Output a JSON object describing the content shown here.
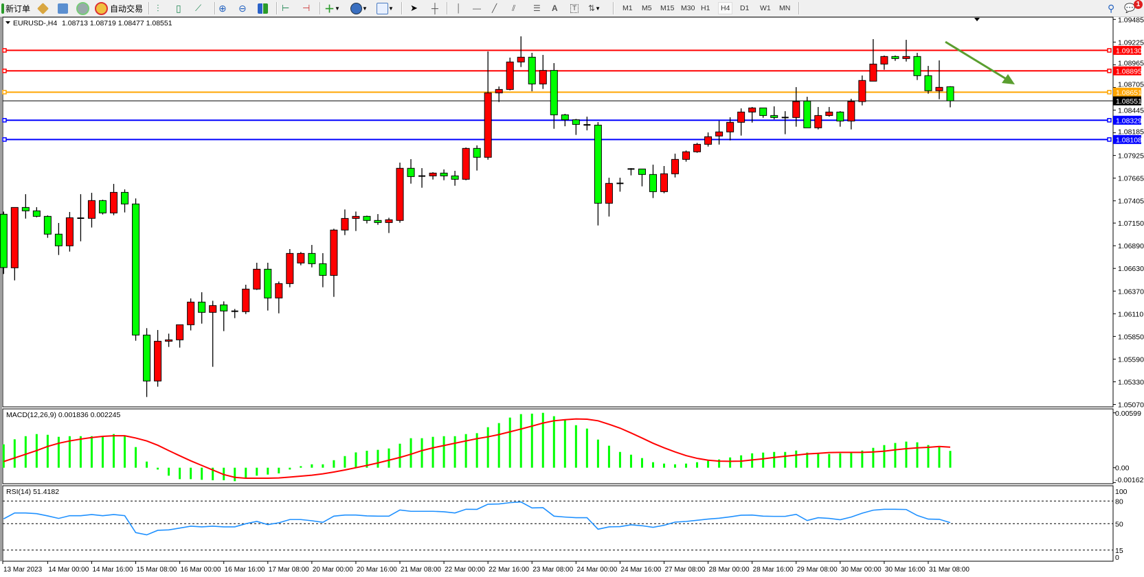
{
  "toolbar": {
    "new_order": "新订单",
    "auto_trade": "自动交易",
    "timeframes": [
      "M1",
      "M5",
      "M15",
      "M30",
      "H1",
      "H4",
      "D1",
      "W1",
      "MN"
    ],
    "active_timeframe": "H4",
    "notification_count": "1",
    "icons": [
      "new-order-icon",
      "market-watch-icon",
      "navigator-icon",
      "signals-icon",
      "auto-trade-icon",
      "bar-chart-icon",
      "candlestick-icon",
      "line-chart-icon",
      "zoom-in-icon",
      "zoom-out-icon",
      "tile-windows-icon",
      "auto-scroll-icon",
      "chart-shift-icon",
      "new-chart-icon",
      "periods-icon",
      "templates-icon",
      "cursor-icon",
      "crosshair-icon",
      "vertical-line-icon",
      "horizontal-line-icon",
      "trendline-icon",
      "equidistant-channel-icon",
      "fibonacci-icon",
      "text-icon",
      "text-label-icon",
      "arrows-icon",
      "search-icon",
      "notification-icon"
    ]
  },
  "chart": {
    "symbol": "EURUSD-,H4",
    "ohlc_text": "1.08713 1.08719 1.08477 1.08551",
    "macd_label": "MACD(12,26,9) 0.001836 0.002245",
    "rsi_label": "RSI(14) 51.4182",
    "up_color": "#ff0000",
    "down_color": "#00ff00",
    "rsi_color": "#1e90ff",
    "signal_color": "#ff0000",
    "arrow_color": "#5a9e2f"
  },
  "chart_data": {
    "type": "candlestick",
    "symbol": "EURUSD-",
    "timeframe": "H4",
    "price_range": [
      1.0507,
      1.09485
    ],
    "price_ticks": [
      "1.09485",
      "1.09225",
      "1.08965",
      "1.08705",
      "1.08445",
      "1.08185",
      "1.07925",
      "1.07665",
      "1.07405",
      "1.07150",
      "1.06890",
      "1.06630",
      "1.06370",
      "1.06110",
      "1.05850",
      "1.05590",
      "1.05330",
      "1.05070"
    ],
    "current_price": {
      "value": 1.08551,
      "label": "1.08551",
      "color": "#000000"
    },
    "levels": [
      {
        "value": 1.0913,
        "label": "1.09130",
        "color": "#ff0000"
      },
      {
        "value": 1.08895,
        "label": "1.08895",
        "color": "#ff0000"
      },
      {
        "value": 1.08651,
        "label": "1.08651",
        "color": "#ffa500"
      },
      {
        "value": 1.08329,
        "label": "1.08329",
        "color": "#0000ff"
      },
      {
        "value": 1.08108,
        "label": "1.08108",
        "color": "#0000ff"
      }
    ],
    "annotation_arrow": {
      "from": [
        "2023-03-31 16:00",
        1.0926
      ],
      "to": [
        "after last bar",
        1.088
      ],
      "direction": "down"
    },
    "time_labels": [
      "13 Mar 2023",
      "14 Mar 00:00",
      "14 Mar 16:00",
      "15 Mar 08:00",
      "16 Mar 00:00",
      "16 Mar 16:00",
      "17 Mar 08:00",
      "20 Mar 00:00",
      "20 Mar 16:00",
      "21 Mar 08:00",
      "22 Mar 00:00",
      "22 Mar 16:00",
      "23 Mar 08:00",
      "24 Mar 00:00",
      "24 Mar 16:00",
      "27 Mar 08:00",
      "28 Mar 00:00",
      "28 Mar 16:00",
      "29 Mar 08:00",
      "30 Mar 00:00",
      "30 Mar 16:00",
      "31 Mar 08:00"
    ],
    "candle_fields": [
      "time",
      "open",
      "high",
      "low",
      "close"
    ],
    "candles": [
      [
        "2023-03-13 08:00",
        1.07251,
        1.07282,
        1.06566,
        1.0664
      ],
      [
        "2023-03-13 12:00",
        1.06637,
        1.07329,
        1.06493,
        1.07329
      ],
      [
        "2023-03-13 16:00",
        1.07329,
        1.07481,
        1.07201,
        1.0729
      ],
      [
        "2023-03-13 20:00",
        1.0729,
        1.07332,
        1.07216,
        1.07227
      ],
      [
        "2023-03-14 00:00",
        1.07227,
        1.07238,
        1.06981,
        1.07023
      ],
      [
        "2023-03-14 04:00",
        1.07023,
        1.07151,
        1.06784,
        1.06889
      ],
      [
        "2023-03-14 08:00",
        1.06889,
        1.07277,
        1.06823,
        1.07211
      ],
      [
        "2023-03-14 12:00",
        1.07206,
        1.07481,
        1.06941,
        1.07206
      ],
      [
        "2023-03-14 16:00",
        1.07204,
        1.07497,
        1.07099,
        1.07408
      ],
      [
        "2023-03-14 20:00",
        1.07408,
        1.07418,
        1.07248,
        1.07266
      ],
      [
        "2023-03-15 00:00",
        1.07266,
        1.07599,
        1.0724,
        1.07502
      ],
      [
        "2023-03-15 04:00",
        1.07502,
        1.07536,
        1.07272,
        1.07369
      ],
      [
        "2023-03-15 08:00",
        1.07369,
        1.07432,
        1.05801,
        1.05866
      ],
      [
        "2023-03-15 12:00",
        1.05866,
        1.05945,
        1.05156,
        1.05339
      ],
      [
        "2023-03-15 16:00",
        1.05339,
        1.05924,
        1.05274,
        1.05795
      ],
      [
        "2023-03-15 20:00",
        1.05795,
        1.05882,
        1.0573,
        1.05811
      ],
      [
        "2023-03-16 00:00",
        1.05811,
        1.05984,
        1.05722,
        1.05984
      ],
      [
        "2023-03-16 04:00",
        1.05984,
        1.06286,
        1.05919,
        1.06244
      ],
      [
        "2023-03-16 08:00",
        1.06244,
        1.06357,
        1.05997,
        1.06126
      ],
      [
        "2023-03-16 12:00",
        1.06126,
        1.06259,
        1.05502,
        1.06204
      ],
      [
        "2023-03-16 16:00",
        1.06212,
        1.06252,
        1.05911,
        1.06142
      ],
      [
        "2023-03-16 20:00",
        1.06139,
        1.06165,
        1.0606,
        1.06139
      ],
      [
        "2023-03-17 00:00",
        1.06134,
        1.06443,
        1.06107,
        1.06393
      ],
      [
        "2023-03-17 04:00",
        1.06393,
        1.06695,
        1.06383,
        1.06621
      ],
      [
        "2023-03-17 08:00",
        1.06621,
        1.06695,
        1.06147,
        1.06291
      ],
      [
        "2023-03-17 12:00",
        1.06291,
        1.0648,
        1.06115,
        1.06456
      ],
      [
        "2023-03-17 16:00",
        1.06456,
        1.06852,
        1.06414,
        1.06802
      ],
      [
        "2023-03-17 20:00",
        1.06692,
        1.06818,
        1.06666,
        1.06802
      ],
      [
        "2023-03-20 00:00",
        1.06802,
        1.06899,
        1.06642,
        1.06684
      ],
      [
        "2023-03-20 04:00",
        1.06684,
        1.06805,
        1.06414,
        1.0655
      ],
      [
        "2023-03-20 08:00",
        1.0655,
        1.07085,
        1.06304,
        1.0707
      ],
      [
        "2023-03-20 12:00",
        1.0707,
        1.07306,
        1.07012,
        1.07203
      ],
      [
        "2023-03-20 16:00",
        1.07203,
        1.07282,
        1.07059,
        1.07227
      ],
      [
        "2023-03-20 20:00",
        1.07227,
        1.07235,
        1.07146,
        1.0718
      ],
      [
        "2023-03-21 00:00",
        1.0718,
        1.07253,
        1.0713,
        1.07156
      ],
      [
        "2023-03-21 04:00",
        1.07156,
        1.07211,
        1.07036,
        1.07188
      ],
      [
        "2023-03-21 08:00",
        1.0718,
        1.07843,
        1.07154,
        1.07778
      ],
      [
        "2023-03-21 12:00",
        1.07778,
        1.07883,
        1.07602,
        1.07683
      ],
      [
        "2023-03-21 16:00",
        1.07689,
        1.0778,
        1.07555,
        1.07689
      ],
      [
        "2023-03-21 20:00",
        1.07691,
        1.07733,
        1.07649,
        1.07723
      ],
      [
        "2023-03-22 00:00",
        1.07723,
        1.07765,
        1.07641,
        1.07691
      ],
      [
        "2023-03-22 04:00",
        1.07691,
        1.07749,
        1.07578,
        1.07652
      ],
      [
        "2023-03-22 08:00",
        1.07652,
        1.08017,
        1.07641,
        1.08006
      ],
      [
        "2023-03-22 12:00",
        1.08006,
        1.08041,
        1.07752,
        1.07904
      ],
      [
        "2023-03-22 16:00",
        1.07904,
        1.09118,
        1.07877,
        1.08643
      ],
      [
        "2023-03-22 20:00",
        1.08643,
        1.08716,
        1.08538,
        1.08682
      ],
      [
        "2023-03-23 00:00",
        1.08682,
        1.09047,
        1.08672,
        1.08997
      ],
      [
        "2023-03-23 04:00",
        1.08997,
        1.09291,
        1.08939,
        1.09052
      ],
      [
        "2023-03-23 08:00",
        1.09052,
        1.09102,
        1.08661,
        1.08745
      ],
      [
        "2023-03-23 12:00",
        1.08745,
        1.09078,
        1.08688,
        1.089
      ],
      [
        "2023-03-23 16:00",
        1.089,
        1.08984,
        1.08231,
        1.08391
      ],
      [
        "2023-03-23 20:00",
        1.08391,
        1.08402,
        1.0826,
        1.08334
      ],
      [
        "2023-03-24 00:00",
        1.08334,
        1.08344,
        1.08161,
        1.08281
      ],
      [
        "2023-03-24 04:00",
        1.08276,
        1.0837,
        1.08213,
        1.08276
      ],
      [
        "2023-03-24 08:00",
        1.08273,
        1.08307,
        1.07122,
        1.07377
      ],
      [
        "2023-03-24 12:00",
        1.07377,
        1.0767,
        1.07225,
        1.07605
      ],
      [
        "2023-03-24 16:00",
        1.07605,
        1.0767,
        1.0751,
        1.07605
      ],
      [
        "2023-03-24 20:00",
        1.0777,
        1.0778,
        1.07697,
        1.0777
      ],
      [
        "2023-03-27 00:00",
        1.0777,
        1.0777,
        1.07571,
        1.07707
      ],
      [
        "2023-03-27 04:00",
        1.07707,
        1.0782,
        1.07437,
        1.0751
      ],
      [
        "2023-03-27 08:00",
        1.0751,
        1.07804,
        1.07492,
        1.07715
      ],
      [
        "2023-03-27 12:00",
        1.07715,
        1.07946,
        1.07673,
        1.0788
      ],
      [
        "2023-03-27 16:00",
        1.0788,
        1.07982,
        1.07854,
        1.07967
      ],
      [
        "2023-03-27 20:00",
        1.07967,
        1.08069,
        1.07956,
        1.08053
      ],
      [
        "2023-03-28 00:00",
        1.08053,
        1.08189,
        1.08027,
        1.0814
      ],
      [
        "2023-03-28 04:00",
        1.08148,
        1.08323,
        1.0805,
        1.08195
      ],
      [
        "2023-03-28 08:00",
        1.08195,
        1.08363,
        1.08098,
        1.08305
      ],
      [
        "2023-03-28 12:00",
        1.08305,
        1.08465,
        1.08153,
        1.08423
      ],
      [
        "2023-03-28 16:00",
        1.08423,
        1.08481,
        1.08302,
        1.0847
      ],
      [
        "2023-03-28 20:00",
        1.0847,
        1.0847,
        1.08357,
        1.08383
      ],
      [
        "2023-03-29 00:00",
        1.08383,
        1.08488,
        1.08339,
        1.0836
      ],
      [
        "2023-03-29 04:00",
        1.0836,
        1.08433,
        1.08169,
        1.0836
      ],
      [
        "2023-03-29 08:00",
        1.0836,
        1.08709,
        1.08255,
        1.08543
      ],
      [
        "2023-03-29 12:00",
        1.08549,
        1.08598,
        1.08242,
        1.08242
      ],
      [
        "2023-03-29 16:00",
        1.08242,
        1.08481,
        1.08224,
        1.08383
      ],
      [
        "2023-03-29 20:00",
        1.08383,
        1.08481,
        1.0837,
        1.08423
      ],
      [
        "2023-03-30 00:00",
        1.08423,
        1.08433,
        1.08255,
        1.0832
      ],
      [
        "2023-03-30 04:00",
        1.0832,
        1.08575,
        1.08224,
        1.08543
      ],
      [
        "2023-03-30 08:00",
        1.08543,
        1.08842,
        1.08499,
        1.08785
      ],
      [
        "2023-03-30 12:00",
        1.08777,
        1.09259,
        1.08777,
        1.08973
      ],
      [
        "2023-03-30 16:00",
        1.08973,
        1.09071,
        1.08908,
        1.0906
      ],
      [
        "2023-03-30 20:00",
        1.0906,
        1.09071,
        1.0901,
        1.09036
      ],
      [
        "2023-03-31 00:00",
        1.09036,
        1.09251,
        1.09002,
        1.0906
      ],
      [
        "2023-03-31 04:00",
        1.0906,
        1.09102,
        1.0879,
        1.0884
      ],
      [
        "2023-03-31 08:00",
        1.0884,
        1.08952,
        1.08633,
        1.08667
      ],
      [
        "2023-03-31 12:00",
        1.08667,
        1.09015,
        1.0857,
        1.08706
      ],
      [
        "2023-03-31 16:00",
        1.08713,
        1.08719,
        1.08477,
        1.08551
      ]
    ],
    "macd": {
      "params": [
        12,
        26,
        9
      ],
      "axis_labels": [
        "0.00599",
        "0.00",
        "-0.001625"
      ],
      "range": [
        -0.001625,
        0.00599
      ],
      "histogram": [
        0.00255,
        0.0031,
        0.00344,
        0.00367,
        0.00359,
        0.00337,
        0.00344,
        0.00344,
        0.00344,
        0.00344,
        0.00367,
        0.00344,
        0.00225,
        0.00067,
        -0.0002,
        -0.00087,
        -0.00125,
        -0.00125,
        -0.00132,
        -0.00137,
        -0.00137,
        -0.00147,
        -0.00112,
        -0.00087,
        -0.00075,
        -0.00062,
        -0.0002,
        0.00017,
        0.00037,
        0.00037,
        0.00082,
        0.00127,
        0.00167,
        0.00185,
        0.00195,
        0.0021,
        0.00262,
        0.00322,
        0.00322,
        0.00337,
        0.00344,
        0.00344,
        0.00367,
        0.00377,
        0.00442,
        0.00487,
        0.00547,
        0.00585,
        0.0059,
        0.00599,
        0.00562,
        0.00524,
        0.00464,
        0.00427,
        0.00307,
        0.0024,
        0.00172,
        0.00142,
        0.00105,
        0.0006,
        0.00045,
        0.00037,
        0.00045,
        0.0006,
        0.00075,
        0.0009,
        0.00112,
        0.00135,
        0.00157,
        0.00165,
        0.00172,
        0.00172,
        0.00187,
        0.00165,
        0.00157,
        0.0015,
        0.00157,
        0.00162,
        0.00187,
        0.00217,
        0.00247,
        0.0027,
        0.00285,
        0.00277,
        0.00247,
        0.00225,
        0.001836
      ],
      "signal": [
        0.00067,
        0.00107,
        0.00147,
        0.00187,
        0.00232,
        0.00267,
        0.00292,
        0.00312,
        0.00329,
        0.00342,
        0.00349,
        0.00349,
        0.00324,
        0.00292,
        0.00245,
        0.00187,
        0.0013,
        0.00075,
        0.00025,
        -0.00025,
        -0.00075,
        -0.00105,
        -0.00115,
        -0.00115,
        -0.00115,
        -0.00112,
        -0.00102,
        -0.00092,
        -0.00082,
        -0.00067,
        -0.00047,
        -0.00025,
        0,
        0.00025,
        0.00052,
        0.00082,
        0.00112,
        0.00147,
        0.00187,
        0.00217,
        0.00242,
        0.00267,
        0.00292,
        0.00317,
        0.00337,
        0.00362,
        0.00392,
        0.00422,
        0.00454,
        0.00487,
        0.00512,
        0.00524,
        0.00532,
        0.00529,
        0.00512,
        0.00474,
        0.00432,
        0.00379,
        0.00324,
        0.00267,
        0.00217,
        0.00172,
        0.00132,
        0.00102,
        0.00082,
        0.00072,
        0.0007,
        0.00072,
        0.00085,
        0.00097,
        0.00112,
        0.00125,
        0.00137,
        0.0015,
        0.00157,
        0.00165,
        0.00167,
        0.00167,
        0.00167,
        0.00172,
        0.0018,
        0.00195,
        0.00207,
        0.00217,
        0.00222,
        0.00232,
        0.002245
      ]
    },
    "rsi": {
      "period": 14,
      "axis_labels": [
        "100",
        "80",
        "50",
        "15",
        "0"
      ],
      "levels": [
        80,
        50,
        15
      ],
      "values": [
        56.4,
        64.2,
        64.2,
        63.3,
        60.3,
        57.0,
        60.6,
        60.6,
        62.1,
        60.6,
        62.1,
        60.6,
        38.2,
        35.2,
        41.2,
        41.8,
        44.2,
        46.7,
        45.8,
        46.7,
        45.8,
        45.8,
        50.0,
        53.0,
        48.8,
        51.2,
        55.5,
        55.5,
        53.9,
        51.8,
        60.0,
        61.5,
        61.5,
        60.3,
        60.0,
        60.0,
        68.2,
        66.4,
        66.4,
        66.4,
        65.8,
        64.2,
        69.1,
        69.0,
        75.8,
        76.1,
        77.9,
        78.8,
        70.9,
        71.2,
        60.0,
        58.8,
        57.9,
        57.9,
        42.7,
        45.8,
        46.1,
        48.5,
        47.3,
        45.2,
        47.9,
        52.1,
        53.0,
        54.5,
        56.1,
        57.3,
        59.1,
        61.2,
        61.5,
        60.0,
        59.7,
        59.7,
        62.4,
        54.2,
        57.9,
        57.0,
        55.2,
        58.8,
        63.9,
        67.9,
        69.1,
        69.1,
        68.8,
        60.9,
        56.1,
        55.8,
        51.4182
      ]
    }
  }
}
